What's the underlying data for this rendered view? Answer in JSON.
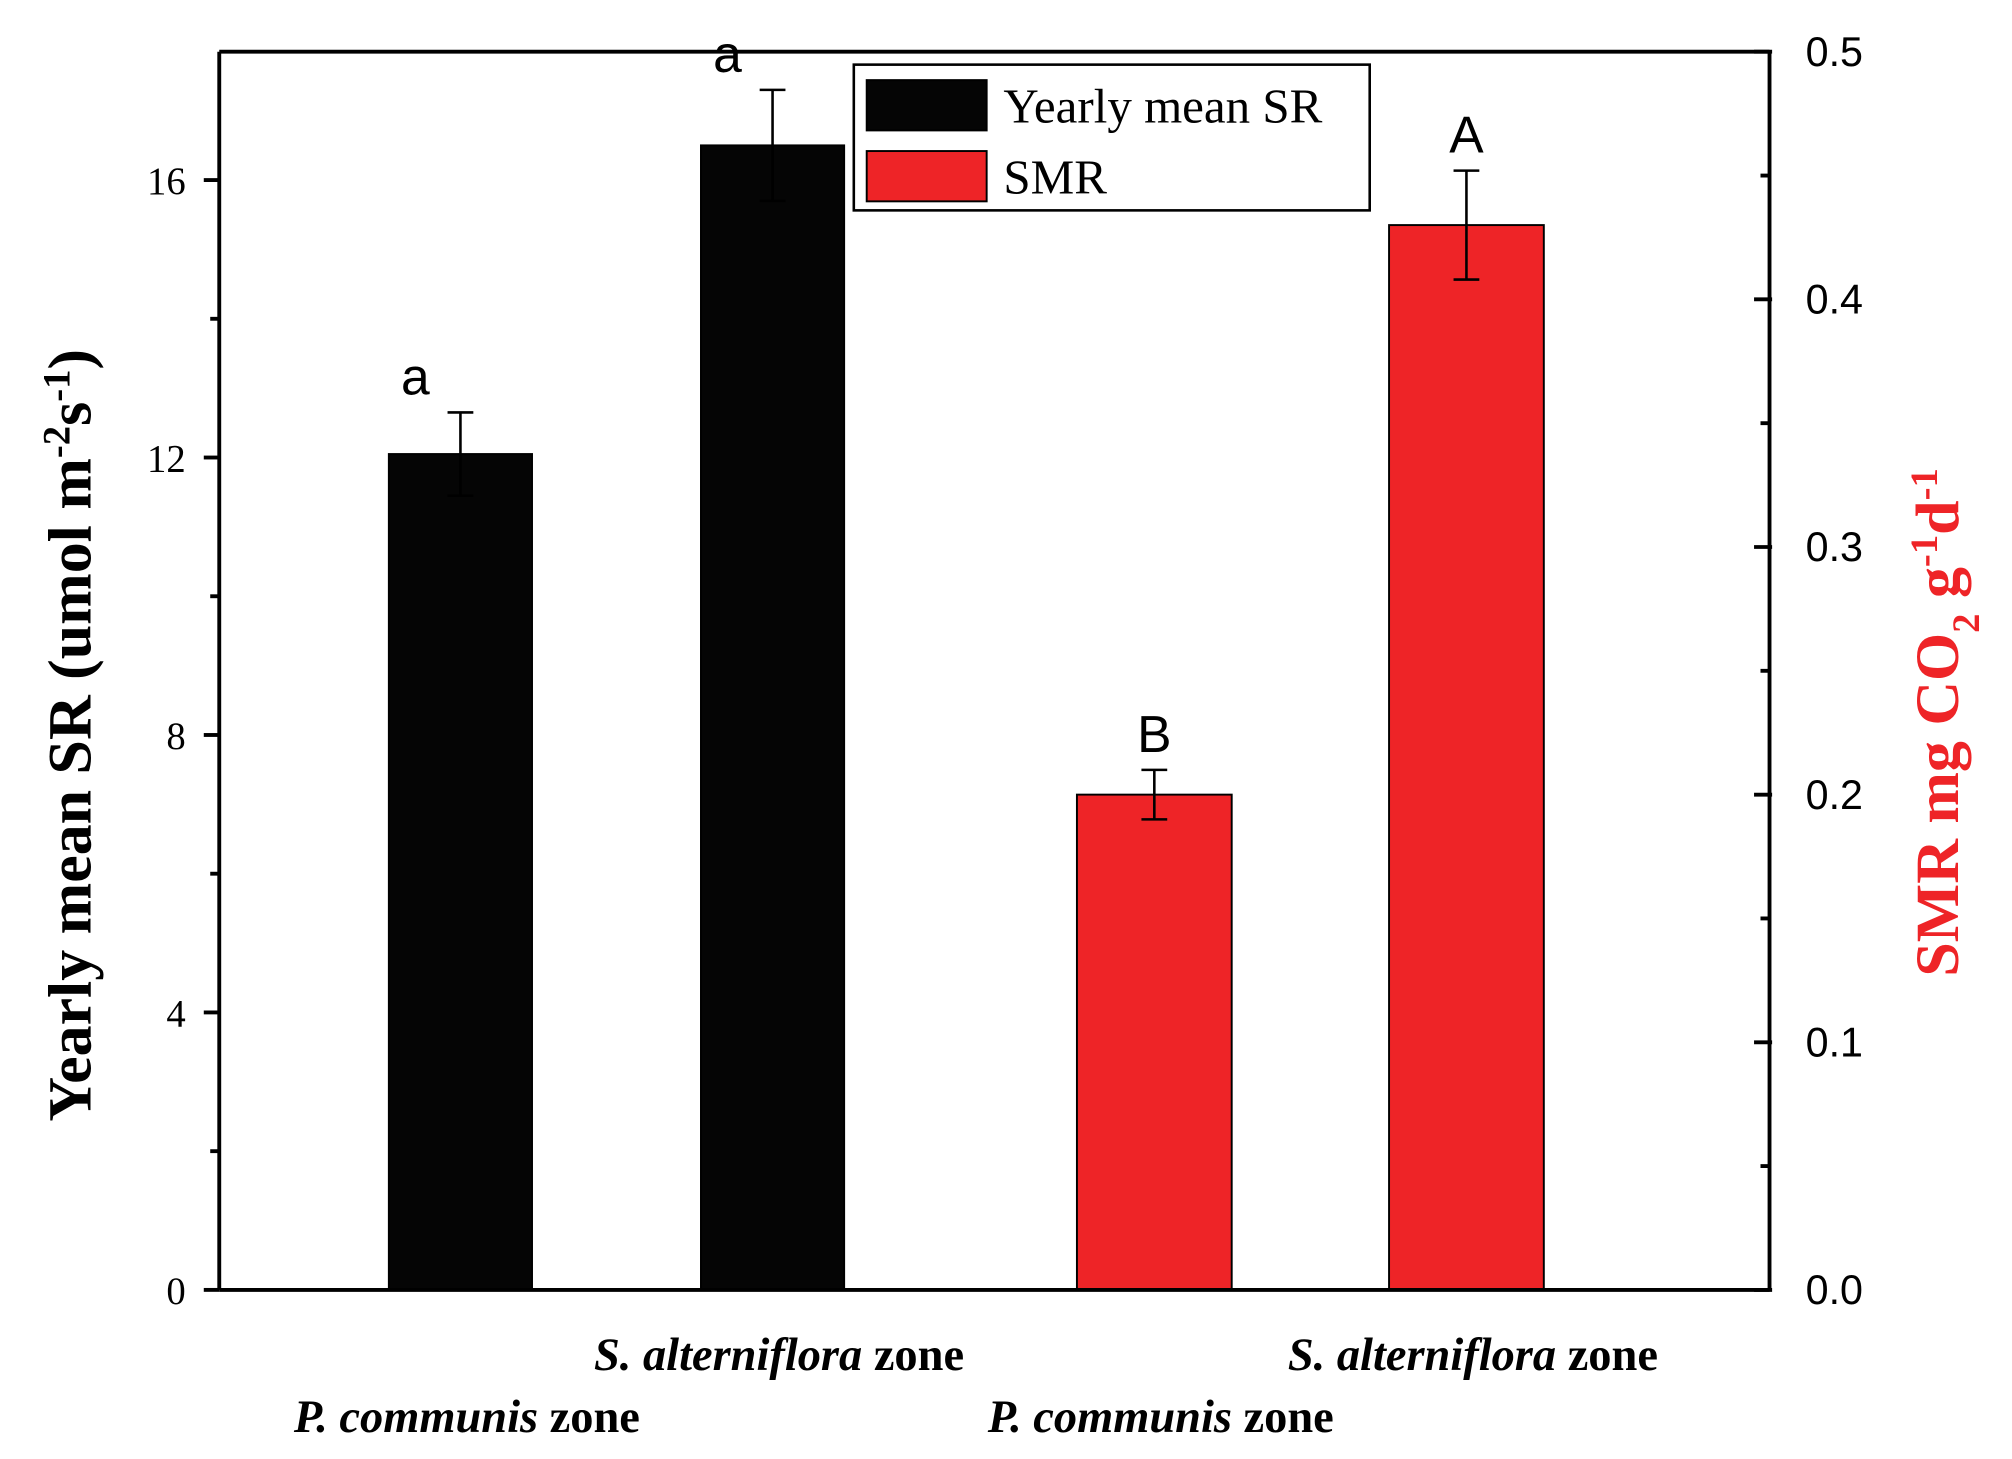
{
  "chart_data": {
    "type": "bar",
    "categories": [
      [
        "P. communis",
        "zone"
      ],
      [
        "S. alterniflora",
        "zone"
      ],
      [
        "P. communis",
        "zone"
      ],
      [
        "S. alterniflora",
        "zone"
      ]
    ],
    "series": [
      {
        "name": "Yearly mean SR",
        "color": "#050505",
        "values": [
          12.05,
          16.5,
          null,
          null
        ],
        "errors": [
          0.6,
          0.8,
          null,
          null
        ]
      },
      {
        "name": "SMR",
        "color": "#ee2427",
        "axis": "y2",
        "values": [
          null,
          null,
          0.2,
          0.43
        ],
        "errors": [
          null,
          null,
          0.01,
          0.022
        ]
      }
    ],
    "annotations": [
      "a",
      "a",
      "B",
      "A"
    ],
    "y_label": [
      {
        "text": "Yearly mean SR (umol m"
      },
      {
        "text": "-2",
        "sup": true
      },
      {
        "text": "s"
      },
      {
        "text": "-1",
        "sup": true
      },
      {
        "text": ")"
      }
    ],
    "y2_label": [
      {
        "text": "SMR mg CO"
      },
      {
        "text": "2",
        "sub": true
      },
      {
        "text": " g"
      },
      {
        "text": "-1",
        "sup": true
      },
      {
        "text": "d"
      },
      {
        "text": "-1",
        "sup": true
      }
    ],
    "ylim": [
      0,
      17.85
    ],
    "yticks": [
      0,
      4,
      8,
      12,
      16
    ],
    "yminorticks": [
      2,
      6,
      10,
      14
    ],
    "y2lim": [
      0,
      0.5
    ],
    "y2ticks": [
      {
        "value": 0,
        "label": "0.0"
      },
      0.1,
      0.2,
      0.3,
      0.4,
      0.5
    ],
    "y2minorticks": [
      0.05,
      0.15,
      0.25,
      0.35,
      0.45
    ],
    "y2_label_color": "#ee2427",
    "legend": "upper center"
  }
}
